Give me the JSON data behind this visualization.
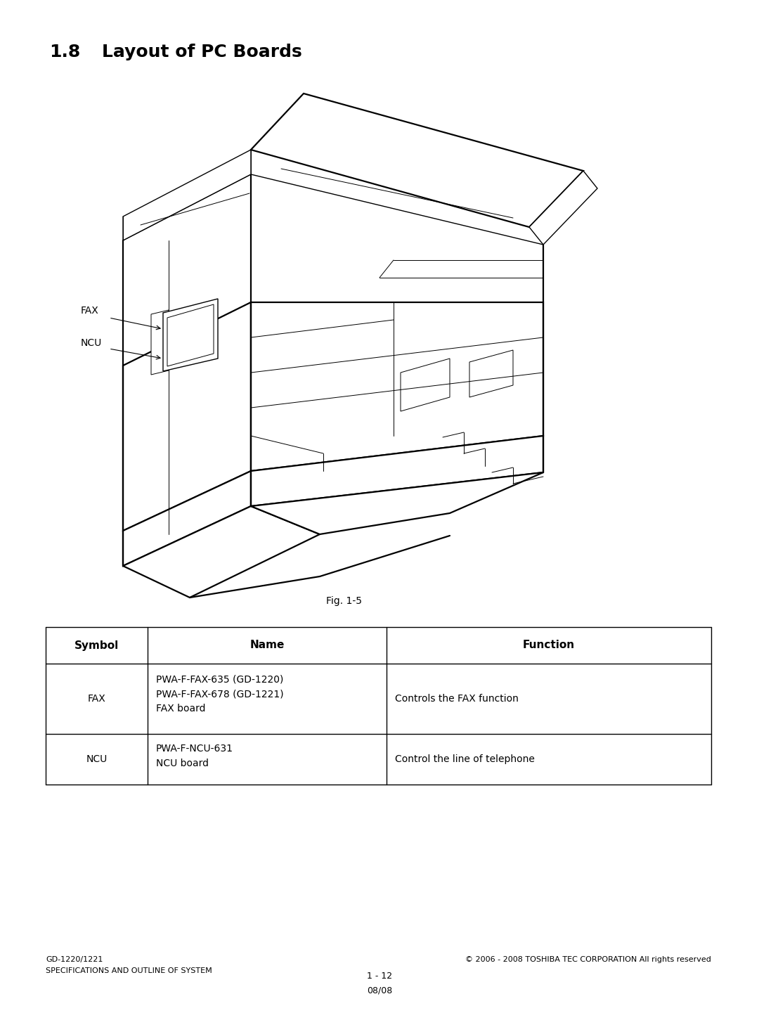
{
  "title_num": "1.8",
  "title_text": "Layout of PC Boards",
  "fig_label": "Fig. 1-5",
  "table_headers": [
    "Symbol",
    "Name",
    "Function"
  ],
  "table_rows": [
    {
      "symbol": "FAX",
      "name": "PWA-F-FAX-635 (GD-1220)\nPWA-F-FAX-678 (GD-1221)\nFAX board",
      "function": "Controls the FAX function"
    },
    {
      "symbol": "NCU",
      "name": "PWA-F-NCU-631\nNCU board",
      "function": "Control the line of telephone"
    }
  ],
  "footer_left_line1": "GD-1220/1221",
  "footer_left_line2": "SPECIFICATIONS AND OUTLINE OF SYSTEM",
  "footer_center_line1": "1 - 12",
  "footer_center_line2": "08/08",
  "footer_right": "© 2006 - 2008 TOSHIBA TEC CORPORATION All rights reserved",
  "bg_color": "#ffffff",
  "text_color": "#000000",
  "line_color": "#000000",
  "fax_label": "FAX",
  "ncu_label": "NCU",
  "lw_thin": 0.7,
  "lw_med": 1.0,
  "lw_thick": 1.6
}
